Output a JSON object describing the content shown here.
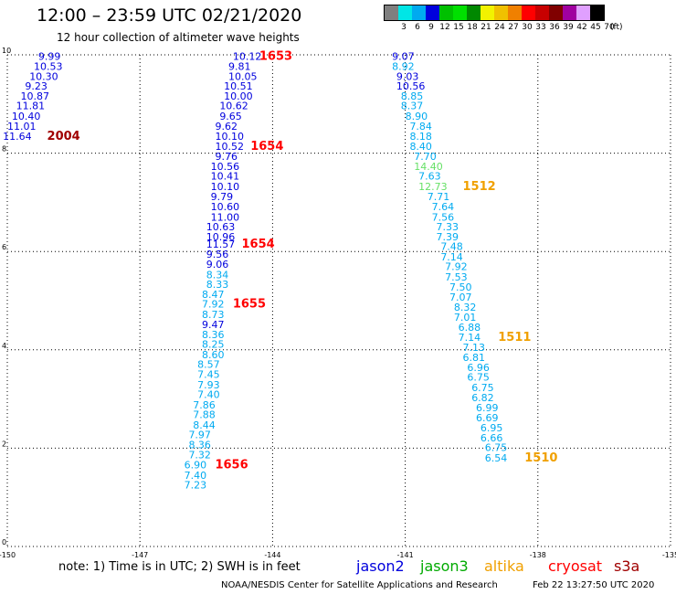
{
  "header": {
    "title": "12:00 – 23:59 UTC 02/21/2020",
    "subtitle": "12 hour collection of altimeter wave heights"
  },
  "color_scale": {
    "labels": [
      "3",
      "6",
      "9",
      "12",
      "15",
      "18",
      "21",
      "24",
      "27",
      "30",
      "33",
      "36",
      "39",
      "42",
      "45",
      "70"
    ],
    "unit": "(ft)",
    "colors": [
      "#7f7f7f",
      "#00e6e6",
      "#00aaf0",
      "#0000dd",
      "#00c000",
      "#00e000",
      "#008800",
      "#f2f200",
      "#f0c000",
      "#f08000",
      "#ff0000",
      "#c80000",
      "#800000",
      "#a000a0",
      "#e0a0ff",
      "#000000"
    ]
  },
  "footer": {
    "note": "note:  1) Time is in UTC;  2) SWH is in feet",
    "credit": "NOAA/NESDIS Center for Satellite Applications and Research",
    "timestamp": "Feb 22 13:27:50 UTC 2020"
  },
  "legend": [
    {
      "name": "jason2",
      "color": "#0000dd"
    },
    {
      "name": "jason3",
      "color": "#00aa00"
    },
    {
      "name": "altika",
      "color": "#f0a000"
    },
    {
      "name": "cryosat",
      "color": "#ff0000"
    },
    {
      "name": "s3a",
      "color": "#a00000"
    }
  ],
  "chart_data": {
    "type": "scatter",
    "title": "12:00 – 23:59 UTC 02/21/2020",
    "xlim": [
      -150,
      -135
    ],
    "ylim": [
      0,
      10
    ],
    "x_ticks": [
      "-150",
      "-147",
      "-144",
      "-141",
      "-138",
      "-135"
    ],
    "y_ticks": [
      "0",
      "2",
      "4",
      "6",
      "8",
      "10"
    ],
    "grid": true,
    "labels": [
      {
        "t": "9.99",
        "x": -149.3,
        "y": 9.9,
        "c": "#0000dd"
      },
      {
        "t": "10.53",
        "x": -149.4,
        "y": 9.69,
        "c": "#0000dd"
      },
      {
        "t": "10.30",
        "x": -149.5,
        "y": 9.49,
        "c": "#0000dd"
      },
      {
        "t": "9.23",
        "x": -149.6,
        "y": 9.29,
        "c": "#0000dd"
      },
      {
        "t": "10.87",
        "x": -149.7,
        "y": 9.09,
        "c": "#0000dd"
      },
      {
        "t": "11.81",
        "x": -149.8,
        "y": 8.89,
        "c": "#0000dd"
      },
      {
        "t": "10.40",
        "x": -149.9,
        "y": 8.68,
        "c": "#0000dd"
      },
      {
        "t": "11.01",
        "x": -150.0,
        "y": 8.48,
        "c": "#0000dd"
      },
      {
        "t": "11.64",
        "x": -150.1,
        "y": 8.27,
        "c": "#0000dd"
      },
      {
        "t": "2004",
        "x": -149.1,
        "y": 8.27,
        "c": "#a00000",
        "big": true
      },
      {
        "t": "10.12",
        "x": -144.9,
        "y": 9.9,
        "c": "#0000dd"
      },
      {
        "t": "9.81",
        "x": -145.0,
        "y": 9.69,
        "c": "#0000dd"
      },
      {
        "t": "10.05",
        "x": -145.0,
        "y": 9.49,
        "c": "#0000dd"
      },
      {
        "t": "10.51",
        "x": -145.1,
        "y": 9.29,
        "c": "#0000dd"
      },
      {
        "t": "10.00",
        "x": -145.1,
        "y": 9.09,
        "c": "#0000dd"
      },
      {
        "t": "10.62",
        "x": -145.2,
        "y": 8.89,
        "c": "#0000dd"
      },
      {
        "t": "9.65",
        "x": -145.2,
        "y": 8.68,
        "c": "#0000dd"
      },
      {
        "t": "9.62",
        "x": -145.3,
        "y": 8.48,
        "c": "#0000dd"
      },
      {
        "t": "10.10",
        "x": -145.3,
        "y": 8.27,
        "c": "#0000dd"
      },
      {
        "t": "10.52",
        "x": -145.3,
        "y": 8.07,
        "c": "#0000dd"
      },
      {
        "t": "9.76",
        "x": -145.3,
        "y": 7.86,
        "c": "#0000dd"
      },
      {
        "t": "10.56",
        "x": -145.4,
        "y": 7.66,
        "c": "#0000dd"
      },
      {
        "t": "10.41",
        "x": -145.4,
        "y": 7.46,
        "c": "#0000dd"
      },
      {
        "t": "10.10",
        "x": -145.4,
        "y": 7.25,
        "c": "#0000dd"
      },
      {
        "t": "9.79",
        "x": -145.4,
        "y": 7.04,
        "c": "#0000dd"
      },
      {
        "t": "10.60",
        "x": -145.4,
        "y": 6.84,
        "c": "#0000dd"
      },
      {
        "t": "11.00",
        "x": -145.4,
        "y": 6.63,
        "c": "#0000dd"
      },
      {
        "t": "10.63",
        "x": -145.5,
        "y": 6.43,
        "c": "#0000dd"
      },
      {
        "t": "10.96",
        "x": -145.5,
        "y": 6.23,
        "c": "#0000dd"
      },
      {
        "t": "11.57",
        "x": -145.5,
        "y": 6.08,
        "c": "#0000dd"
      },
      {
        "t": "9.56",
        "x": -145.5,
        "y": 5.87,
        "c": "#0000dd"
      },
      {
        "t": "9.06",
        "x": -145.5,
        "y": 5.67,
        "c": "#0000dd"
      },
      {
        "t": "8.34",
        "x": -145.5,
        "y": 5.46,
        "c": "#00aaf0"
      },
      {
        "t": "8.33",
        "x": -145.5,
        "y": 5.26,
        "c": "#00aaf0"
      },
      {
        "t": "8.47",
        "x": -145.6,
        "y": 5.06,
        "c": "#00aaf0"
      },
      {
        "t": "7.92",
        "x": -145.6,
        "y": 4.86,
        "c": "#00aaf0"
      },
      {
        "t": "8.73",
        "x": -145.6,
        "y": 4.65,
        "c": "#00aaf0"
      },
      {
        "t": "9.47",
        "x": -145.6,
        "y": 4.44,
        "c": "#0000dd"
      },
      {
        "t": "8.36",
        "x": -145.6,
        "y": 4.24,
        "c": "#00aaf0"
      },
      {
        "t": "8.25",
        "x": -145.6,
        "y": 4.04,
        "c": "#00aaf0"
      },
      {
        "t": "8.60",
        "x": -145.6,
        "y": 3.83,
        "c": "#00aaf0"
      },
      {
        "t": "8.57",
        "x": -145.7,
        "y": 3.63,
        "c": "#00aaf0"
      },
      {
        "t": "7.45",
        "x": -145.7,
        "y": 3.43,
        "c": "#00aaf0"
      },
      {
        "t": "7.93",
        "x": -145.7,
        "y": 3.22,
        "c": "#00aaf0"
      },
      {
        "t": "7.40",
        "x": -145.7,
        "y": 3.02,
        "c": "#00aaf0"
      },
      {
        "t": "7.86",
        "x": -145.8,
        "y": 2.81,
        "c": "#00aaf0"
      },
      {
        "t": "7.88",
        "x": -145.8,
        "y": 2.61,
        "c": "#00aaf0"
      },
      {
        "t": "8.44",
        "x": -145.8,
        "y": 2.4,
        "c": "#00aaf0"
      },
      {
        "t": "7.97",
        "x": -145.9,
        "y": 2.2,
        "c": "#00aaf0"
      },
      {
        "t": "8.36",
        "x": -145.9,
        "y": 2.0,
        "c": "#00aaf0"
      },
      {
        "t": "7.32",
        "x": -145.9,
        "y": 1.79,
        "c": "#00aaf0"
      },
      {
        "t": "6.90",
        "x": -146.0,
        "y": 1.59,
        "c": "#00aaf0"
      },
      {
        "t": "7.40",
        "x": -146.0,
        "y": 1.38,
        "c": "#00aaf0"
      },
      {
        "t": "7.23",
        "x": -146.0,
        "y": 1.18,
        "c": "#00aaf0"
      },
      {
        "t": "1653",
        "x": -144.3,
        "y": 9.9,
        "c": "#ff0000",
        "big": true
      },
      {
        "t": "1654",
        "x": -144.5,
        "y": 8.07,
        "c": "#ff0000",
        "big": true
      },
      {
        "t": "1654",
        "x": -144.7,
        "y": 6.08,
        "c": "#ff0000",
        "big": true
      },
      {
        "t": "1655",
        "x": -144.9,
        "y": 4.86,
        "c": "#ff0000",
        "big": true
      },
      {
        "t": "1656",
        "x": -145.3,
        "y": 1.59,
        "c": "#ff0000",
        "big": true
      },
      {
        "t": "9.07",
        "x": -141.3,
        "y": 9.9,
        "c": "#0000dd"
      },
      {
        "t": "8.92",
        "x": -141.3,
        "y": 9.69,
        "c": "#00aaf0"
      },
      {
        "t": "9.03",
        "x": -141.2,
        "y": 9.49,
        "c": "#0000dd"
      },
      {
        "t": "10.56",
        "x": -141.2,
        "y": 9.29,
        "c": "#0000dd"
      },
      {
        "t": "8.85",
        "x": -141.1,
        "y": 9.09,
        "c": "#00aaf0"
      },
      {
        "t": "8.37",
        "x": -141.1,
        "y": 8.89,
        "c": "#00aaf0"
      },
      {
        "t": "8.90",
        "x": -141.0,
        "y": 8.68,
        "c": "#00aaf0"
      },
      {
        "t": "7.84",
        "x": -140.9,
        "y": 8.48,
        "c": "#00aaf0"
      },
      {
        "t": "8.18",
        "x": -140.9,
        "y": 8.27,
        "c": "#00aaf0"
      },
      {
        "t": "8.40",
        "x": -140.9,
        "y": 8.07,
        "c": "#00aaf0"
      },
      {
        "t": "7.70",
        "x": -140.8,
        "y": 7.86,
        "c": "#00aaf0"
      },
      {
        "t": "14.40",
        "x": -140.8,
        "y": 7.66,
        "c": "#66e066"
      },
      {
        "t": "7.63",
        "x": -140.7,
        "y": 7.46,
        "c": "#00aaf0"
      },
      {
        "t": "12.73",
        "x": -140.7,
        "y": 7.25,
        "c": "#66e066"
      },
      {
        "t": "7.71",
        "x": -140.5,
        "y": 7.04,
        "c": "#00aaf0"
      },
      {
        "t": "7.64",
        "x": -140.4,
        "y": 6.84,
        "c": "#00aaf0"
      },
      {
        "t": "7.56",
        "x": -140.4,
        "y": 6.63,
        "c": "#00aaf0"
      },
      {
        "t": "7.33",
        "x": -140.3,
        "y": 6.43,
        "c": "#00aaf0"
      },
      {
        "t": "7.39",
        "x": -140.3,
        "y": 6.23,
        "c": "#00aaf0"
      },
      {
        "t": "7.48",
        "x": -140.2,
        "y": 6.03,
        "c": "#00aaf0"
      },
      {
        "t": "7.14",
        "x": -140.2,
        "y": 5.82,
        "c": "#00aaf0"
      },
      {
        "t": "7.92",
        "x": -140.1,
        "y": 5.62,
        "c": "#00aaf0"
      },
      {
        "t": "7.53",
        "x": -140.1,
        "y": 5.41,
        "c": "#00aaf0"
      },
      {
        "t": "7.50",
        "x": -140.0,
        "y": 5.2,
        "c": "#00aaf0"
      },
      {
        "t": "7.07",
        "x": -140.0,
        "y": 5.0,
        "c": "#00aaf0"
      },
      {
        "t": "8.32",
        "x": -139.9,
        "y": 4.8,
        "c": "#00aaf0"
      },
      {
        "t": "7.01",
        "x": -139.9,
        "y": 4.59,
        "c": "#00aaf0"
      },
      {
        "t": "6.88",
        "x": -139.8,
        "y": 4.39,
        "c": "#00aaf0"
      },
      {
        "t": "7.14",
        "x": -139.8,
        "y": 4.18,
        "c": "#00aaf0"
      },
      {
        "t": "7.13",
        "x": -139.7,
        "y": 3.98,
        "c": "#00aaf0"
      },
      {
        "t": "6.81",
        "x": -139.7,
        "y": 3.77,
        "c": "#00aaf0"
      },
      {
        "t": "6.96",
        "x": -139.6,
        "y": 3.57,
        "c": "#00aaf0"
      },
      {
        "t": "6.75",
        "x": -139.6,
        "y": 3.37,
        "c": "#00aaf0"
      },
      {
        "t": "6.75",
        "x": -139.5,
        "y": 3.16,
        "c": "#00aaf0"
      },
      {
        "t": "6.82",
        "x": -139.5,
        "y": 2.96,
        "c": "#00aaf0"
      },
      {
        "t": "6.99",
        "x": -139.4,
        "y": 2.75,
        "c": "#00aaf0"
      },
      {
        "t": "6.69",
        "x": -139.4,
        "y": 2.55,
        "c": "#00aaf0"
      },
      {
        "t": "6.95",
        "x": -139.3,
        "y": 2.34,
        "c": "#00aaf0"
      },
      {
        "t": "6.66",
        "x": -139.3,
        "y": 2.14,
        "c": "#00aaf0"
      },
      {
        "t": "6.75",
        "x": -139.2,
        "y": 1.94,
        "c": "#00aaf0"
      },
      {
        "t": "6.54",
        "x": -139.2,
        "y": 1.73,
        "c": "#00aaf0"
      },
      {
        "t": "1512",
        "x": -139.7,
        "y": 7.25,
        "c": "#f0a000",
        "big": true
      },
      {
        "t": "1511",
        "x": -138.9,
        "y": 4.18,
        "c": "#f0a000",
        "big": true
      },
      {
        "t": "1510",
        "x": -138.3,
        "y": 1.73,
        "c": "#f0a000",
        "big": true
      }
    ]
  }
}
